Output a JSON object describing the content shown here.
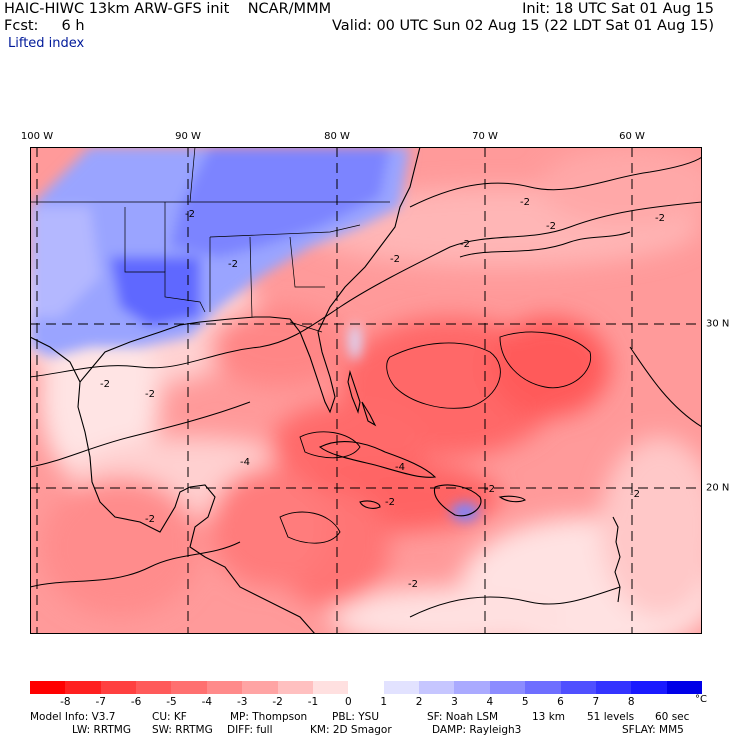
{
  "header": {
    "title": "HAIC-HIWC 13km ARW-GFS init    NCAR/MMM",
    "init": "Init: 18 UTC Sat 01 Aug 15",
    "fcst": "Fcst:     6 h",
    "valid": "Valid: 00 UTC Sun 02 Aug 15 (22 LDT Sat 01 Aug 15)",
    "field": "Lifted index"
  },
  "map": {
    "lon_labels": [
      "100 W",
      "90 W",
      "80 W",
      "70 W",
      "60 W"
    ],
    "lat_labels": [
      "30 N",
      "20 N"
    ],
    "contour_labels": [
      "-2",
      "-2",
      "-2",
      "-2",
      "-2",
      "-2",
      "-2",
      "-2",
      "-2",
      "-2",
      "-2",
      "-4",
      "-4",
      "-2",
      "-2",
      "-2"
    ]
  },
  "colorbar": {
    "labels": [
      "-8",
      "-7",
      "-6",
      "-5",
      "-4",
      "-3",
      "-2",
      "-1",
      "0",
      "1",
      "2",
      "3",
      "4",
      "5",
      "6",
      "7",
      "8"
    ],
    "unit": "°C",
    "colors": [
      "#ff0000",
      "#ff2020",
      "#ff4040",
      "#ff5a5a",
      "#ff7070",
      "#ff8a8a",
      "#ffa4a4",
      "#ffc0c0",
      "#ffe0e0",
      "#ffffff",
      "#e2e2ff",
      "#c6c6ff",
      "#aaaaff",
      "#8c8cff",
      "#6e6eff",
      "#5050ff",
      "#3434ff",
      "#1a1aff",
      "#0000e8"
    ]
  },
  "model_info": {
    "line1": [
      "Model Info: V3.7",
      "CU: KF",
      "MP: Thompson",
      "PBL: YSU",
      "SF: Noah LSM",
      "13 km",
      "51 levels",
      "60 sec"
    ],
    "line2": [
      "LW: RRTMG",
      "SW: RRTMG",
      "DIFF: full",
      "KM: 2D Smagor",
      "DAMP: Rayleigh3",
      "SFLAY: MM5"
    ]
  }
}
